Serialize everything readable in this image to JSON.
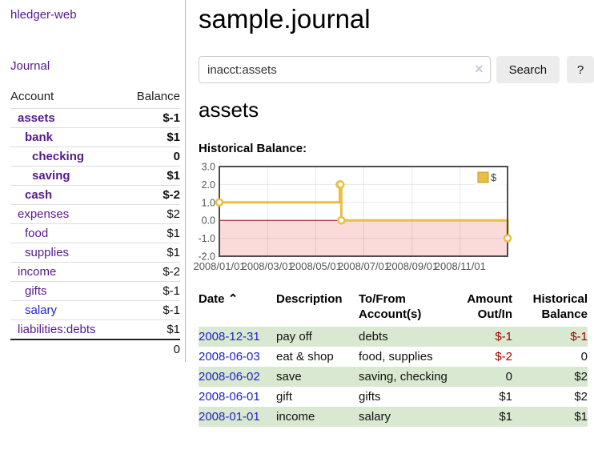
{
  "colors": {
    "link_purple": "#551a8b",
    "link_blue": "#2222cc",
    "negative_strong": "#a40000",
    "negative_soft": "#b06f6f",
    "row_stripe_green": "#d9e8d0",
    "chart_line_gold": "#e8bf45",
    "chart_negative_fill": "#fbdada",
    "chart_zero_line": "#991111"
  },
  "sidebar": {
    "app_title": "hledger-web",
    "journal_link": "Journal",
    "accounts_header": {
      "account": "Account",
      "balance": "Balance"
    },
    "accounts": [
      {
        "name": "assets",
        "indent": 1,
        "bold": true,
        "balance": "$-1",
        "balance_class": "neg"
      },
      {
        "name": "bank",
        "indent": 2,
        "bold": true,
        "balance": "$1",
        "balance_class": ""
      },
      {
        "name": "checking",
        "indent": 3,
        "bold": true,
        "balance": "0",
        "balance_class": ""
      },
      {
        "name": "saving",
        "indent": 3,
        "bold": true,
        "balance": "$1",
        "balance_class": ""
      },
      {
        "name": "cash",
        "indent": 2,
        "bold": true,
        "balance": "$-2",
        "balance_class": "neg"
      },
      {
        "name": "expenses",
        "indent": 1,
        "bold": false,
        "balance": "$2",
        "balance_class": ""
      },
      {
        "name": "food",
        "indent": 2,
        "bold": false,
        "balance": "$1",
        "balance_class": ""
      },
      {
        "name": "supplies",
        "indent": 2,
        "bold": false,
        "balance": "$1",
        "balance_class": ""
      },
      {
        "name": "income",
        "indent": 1,
        "bold": false,
        "balance": "$-2",
        "balance_class": "soft"
      },
      {
        "name": "gifts",
        "indent": 2,
        "bold": false,
        "balance": "$-1",
        "balance_class": "soft"
      },
      {
        "name": "salary",
        "indent": 2,
        "bold": false,
        "balance": "$-1",
        "balance_class": "soft",
        "color": "blue"
      },
      {
        "name": "liabilities:debts",
        "indent": 1,
        "bold": false,
        "balance": "$1",
        "balance_class": ""
      }
    ],
    "total": "0"
  },
  "main": {
    "title": "sample.journal",
    "search": {
      "value": "inacct:assets",
      "clear_icon": "×",
      "button_label": "Search",
      "help_label": "?"
    },
    "account_heading": "assets",
    "chart_heading": "Historical Balance:"
  },
  "chart_data": {
    "type": "line",
    "step": true,
    "title": "Historical Balance:",
    "xlabel": "",
    "ylabel": "",
    "ylim": [
      -2,
      3
    ],
    "grid": true,
    "series": [
      {
        "name": "$",
        "color": "#e8bf45",
        "points": [
          [
            "2008-01-01",
            1
          ],
          [
            "2008-06-01",
            2
          ],
          [
            "2008-06-02",
            2
          ],
          [
            "2008-06-03",
            0
          ],
          [
            "2008-12-31",
            -1
          ]
        ]
      }
    ],
    "yticks": [
      3,
      2,
      1,
      0,
      -1,
      -2
    ],
    "ytick_labels": [
      "3.0",
      "2.0",
      "1.0",
      "0.0",
      "-1.0",
      "-2.0"
    ],
    "xtick_labels": [
      "2008/01/01",
      "2008/03/01",
      "2008/05/01",
      "2008/07/01",
      "2008/09/01",
      "2008/11/01"
    ],
    "negative_region_color": "#fbdada",
    "zero_line_color": "#991111",
    "legend": {
      "label": "$",
      "position": "top-right"
    }
  },
  "transactions": {
    "headers": {
      "date": "Date",
      "sort_icon": "⌃",
      "description": "Description",
      "accounts": "To/From Account(s)",
      "amount": "Amount Out/In",
      "balance": "Historical Balance"
    },
    "rows": [
      {
        "date": "2008-12-31",
        "description": "pay off",
        "accounts": "debts",
        "amount": "$-1",
        "balance": "$-1"
      },
      {
        "date": "2008-06-03",
        "description": "eat & shop",
        "accounts": "food, supplies",
        "amount": "$-2",
        "balance": "0"
      },
      {
        "date": "2008-06-02",
        "description": "save",
        "accounts": "saving, checking",
        "amount": "0",
        "balance": "$2"
      },
      {
        "date": "2008-06-01",
        "description": "gift",
        "accounts": "gifts",
        "amount": "$1",
        "balance": "$2"
      },
      {
        "date": "2008-01-01",
        "description": "income",
        "accounts": "salary",
        "amount": "$1",
        "balance": "$1"
      }
    ]
  }
}
